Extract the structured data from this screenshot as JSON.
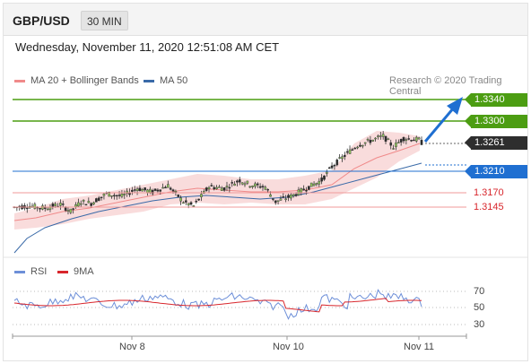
{
  "header": {
    "pair": "GBP/USD",
    "timeframe": "30 MIN"
  },
  "datetime": "Wednesday, November 11, 2020 12:51:08 AM CET",
  "legend": {
    "ma20_bb": "MA 20 + Bollinger Bands",
    "ma50": "MA 50",
    "credit": "Research © 2020 Trading Central",
    "rsi": "RSI",
    "ma9": "9MA"
  },
  "colors": {
    "green_level": "#4c9d12",
    "blue_level": "#1f6fd1",
    "red_level": "#d8262c",
    "bb_fill": "#f8d6d6",
    "ma20": "#f08a8a",
    "ma50": "#3a6aa8",
    "rsi_line": "#6d8fd8",
    "rsi_ma": "#d8262c"
  },
  "levels": {
    "r2": "1.3340",
    "r1": "1.3300",
    "last": "1.3261",
    "s0": "1.3210",
    "s1": "1.3170",
    "s2": "1.3145"
  },
  "rsi_ticks": {
    "t70": "70",
    "t50": "50",
    "t30": "30"
  },
  "xaxis": {
    "d1": "Nov 8",
    "d2": "Nov 10",
    "d3": "Nov 11"
  },
  "chart_data": {
    "type": "candlestick",
    "symbol": "GBP/USD",
    "timeframe": "30 MIN",
    "price_levels": [
      1.334,
      1.33,
      1.3261,
      1.321,
      1.317,
      1.3145
    ],
    "x_tick_labels": [
      "Nov 8",
      "Nov 10",
      "Nov 11"
    ],
    "price_path": [
      [
        0,
        1.314
      ],
      [
        6,
        1.3142
      ],
      [
        12,
        1.3138
      ],
      [
        18,
        1.3145
      ],
      [
        22,
        1.3132
      ],
      [
        26,
        1.315
      ],
      [
        30,
        1.3147
      ],
      [
        36,
        1.3165
      ],
      [
        42,
        1.316
      ],
      [
        48,
        1.3175
      ],
      [
        54,
        1.3168
      ],
      [
        60,
        1.318
      ],
      [
        66,
        1.315
      ],
      [
        70,
        1.3142
      ],
      [
        76,
        1.3178
      ],
      [
        82,
        1.3175
      ],
      [
        88,
        1.319
      ],
      [
        92,
        1.3182
      ],
      [
        98,
        1.3177
      ],
      [
        102,
        1.315
      ],
      [
        108,
        1.316
      ],
      [
        114,
        1.3175
      ],
      [
        120,
        1.319
      ],
      [
        124,
        1.3215
      ],
      [
        130,
        1.324
      ],
      [
        134,
        1.3255
      ],
      [
        140,
        1.3265
      ],
      [
        144,
        1.3272
      ],
      [
        148,
        1.3252
      ],
      [
        152,
        1.3268
      ],
      [
        158,
        1.3265
      ],
      [
        160,
        1.3255
      ]
    ],
    "indicators": {
      "rsi": {
        "levels": [
          70,
          50,
          30
        ]
      }
    }
  }
}
